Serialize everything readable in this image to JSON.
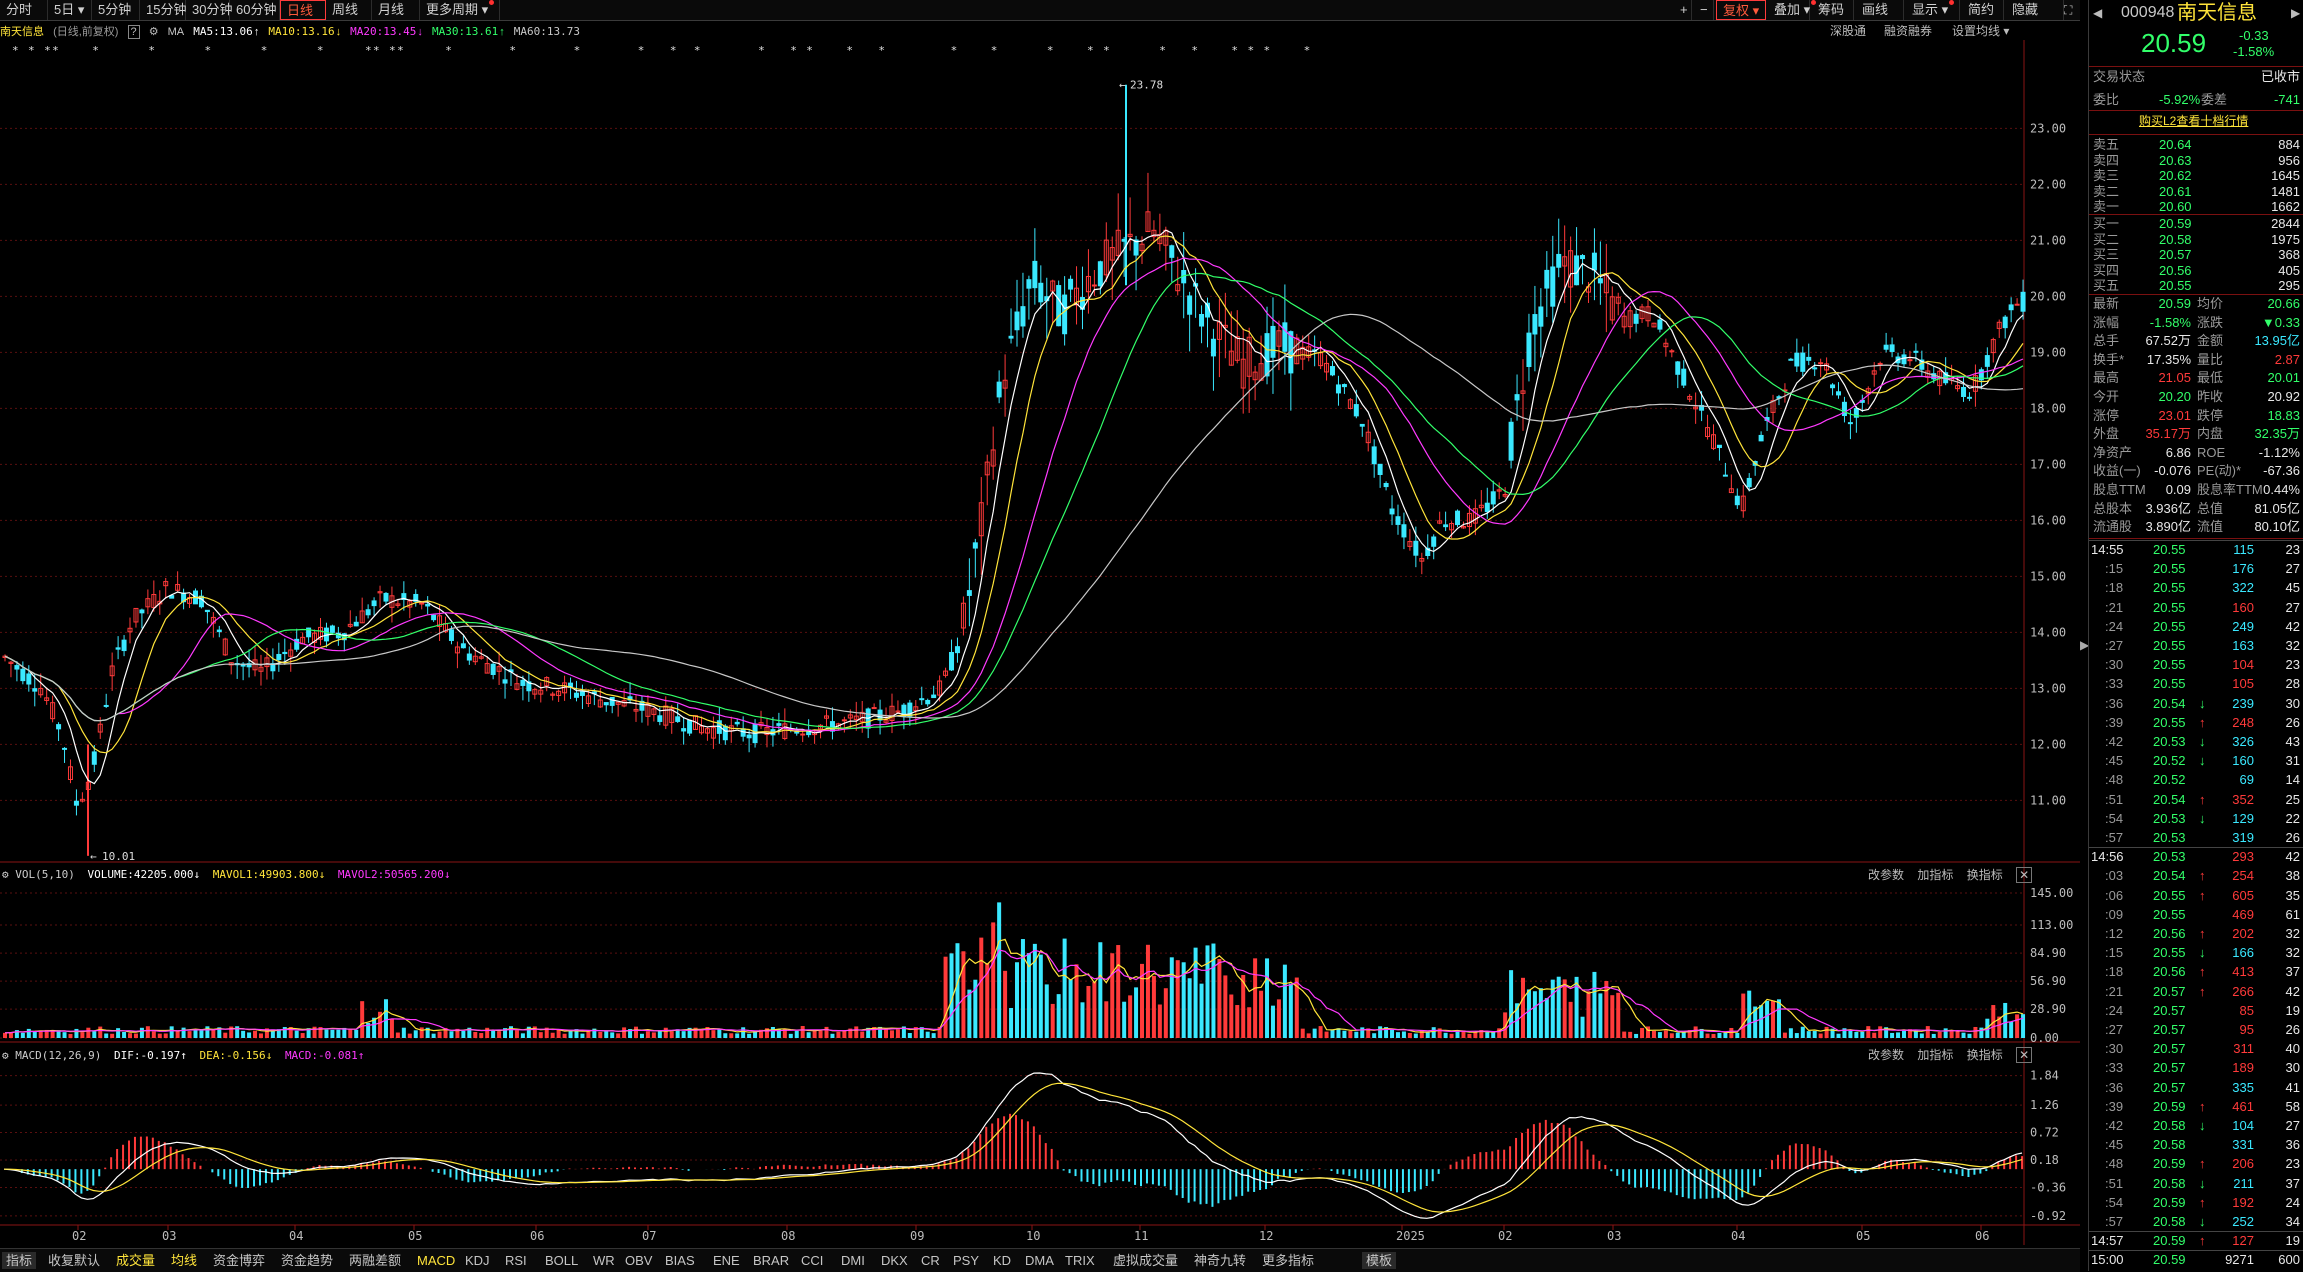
{
  "toolbar": {
    "left_items": [
      "分时",
      "5日 ▾",
      "5分钟",
      "15分钟",
      "30分钟",
      "60分钟",
      "日线",
      "周线",
      "月线",
      "更多周期 ▾"
    ],
    "active": "日线",
    "right_items": [
      "+",
      "−",
      "复权 ▾",
      "叠加 ▾",
      "筹码",
      "画线",
      "显示 ▾",
      "简约",
      "隐藏"
    ],
    "sub_right": [
      "深股通",
      "融资融券",
      "设置均线 ▾"
    ]
  },
  "chart_header": {
    "stock_name": "南天信息",
    "mode": "(日线,前复权)",
    "help": "?",
    "ma_label": "MA",
    "ma5": "MA5:13.06",
    "ma10": "MA10:13.16",
    "ma20": "MA20:13.45",
    "ma30": "MA30:13.61",
    "ma60": "MA60:13.73"
  },
  "colors": {
    "up": "#ff3a3a",
    "down": "#3ae8ff",
    "ma5": "#ffffff",
    "ma10": "#ffe43a",
    "ma20": "#ff3aff",
    "ma30": "#32ff6a",
    "ma60": "#c8c8c8",
    "grid": "#5a0f0f"
  },
  "price_axis": [
    "23.00",
    "22.00",
    "21.00",
    "20.00",
    "19.00",
    "18.00",
    "17.00",
    "16.00",
    "15.00",
    "14.00",
    "13.00",
    "12.00",
    "11.00"
  ],
  "annotations": {
    "high": "23.78",
    "low": "10.01"
  },
  "event_markers": "* * **    *      *      *      *      *     ** **     *       *       *       *   *  *       *   * *    *   *        *    *      *    * *      *   *    * * *    *",
  "vol_panel": {
    "label": "VOL(5,10)",
    "volume": "VOLUME:42205.000",
    "mavol1": "MAVOL1:49903.800",
    "mavol2": "MAVOL2:50565.200",
    "buttons": [
      "改参数",
      "加指标",
      "换指标"
    ],
    "axis": [
      "145.00",
      "113.00",
      "84.90",
      "56.90",
      "28.90",
      "0.00"
    ]
  },
  "macd_panel": {
    "label": "MACD(12,26,9)",
    "dif": "DIF:-0.197",
    "dea": "DEA:-0.156",
    "macd": "MACD:-0.081",
    "buttons": [
      "改参数",
      "加指标",
      "换指标"
    ],
    "axis": [
      "1.84",
      "1.26",
      "0.72",
      "0.18",
      "-0.36",
      "-0.92"
    ]
  },
  "x_axis": [
    "02",
    "03",
    "04",
    "05",
    "06",
    "07",
    "08",
    "09",
    "10",
    "11",
    "12",
    "2025",
    "02",
    "03",
    "04",
    "05",
    "06"
  ],
  "bottom_tabs": [
    "指标",
    "收复默认",
    "成交量",
    "均线",
    "资金博弈",
    "资金趋势",
    "两融差额",
    "MACD",
    "KDJ",
    "RSI",
    "BOLL",
    "WR",
    "OBV",
    "BIAS",
    "ENE",
    "BRAR",
    "CCI",
    "DMI",
    "DKX",
    "CR",
    "PSY",
    "KD",
    "DMA",
    "TRIX",
    "虚拟成交量",
    "神奇九转",
    "更多指标",
    "模板"
  ],
  "quote": {
    "code": "000948",
    "name": "南天信息",
    "price": "20.59",
    "change": "-0.33",
    "pct": "-1.58%",
    "status_label": "交易状态",
    "status": "已收市",
    "weibi_label": "委比",
    "weibi": "-5.92%",
    "weicha_label": "委差",
    "weicha": "-741",
    "l2_link": "购买L2查看十档行情",
    "asks": [
      {
        "label": "卖五",
        "price": "20.64",
        "vol": "884"
      },
      {
        "label": "卖四",
        "price": "20.63",
        "vol": "956"
      },
      {
        "label": "卖三",
        "price": "20.62",
        "vol": "1645"
      },
      {
        "label": "卖二",
        "price": "20.61",
        "vol": "1481"
      },
      {
        "label": "卖一",
        "price": "20.60",
        "vol": "1662"
      }
    ],
    "bids": [
      {
        "label": "买一",
        "price": "20.59",
        "vol": "2844"
      },
      {
        "label": "买二",
        "price": "20.58",
        "vol": "1975"
      },
      {
        "label": "买三",
        "price": "20.57",
        "vol": "368"
      },
      {
        "label": "买四",
        "price": "20.56",
        "vol": "405"
      },
      {
        "label": "买五",
        "price": "20.55",
        "vol": "295"
      }
    ],
    "stats": [
      {
        "l1": "最新",
        "v1": "20.59",
        "c1": "green",
        "l2": "均价",
        "v2": "20.66",
        "c2": "green"
      },
      {
        "l1": "涨幅",
        "v1": "-1.58%",
        "c1": "green",
        "l2": "涨跌",
        "v2": "▼0.33",
        "c2": "green"
      },
      {
        "l1": "总手",
        "v1": "67.52万",
        "c1": "white",
        "l2": "金额",
        "v2": "13.95亿",
        "c2": "cyan"
      },
      {
        "l1": "换手*",
        "v1": "17.35%",
        "c1": "white",
        "l2": "量比",
        "v2": "2.87",
        "c2": "red"
      },
      {
        "l1": "最高",
        "v1": "21.05",
        "c1": "red",
        "l2": "最低",
        "v2": "20.01",
        "c2": "green"
      },
      {
        "l1": "今开",
        "v1": "20.20",
        "c1": "green",
        "l2": "昨收",
        "v2": "20.92",
        "c2": "white"
      },
      {
        "l1": "涨停",
        "v1": "23.01",
        "c1": "red",
        "l2": "跌停",
        "v2": "18.83",
        "c2": "green"
      },
      {
        "l1": "外盘",
        "v1": "35.17万",
        "c1": "red",
        "l2": "内盘",
        "v2": "32.35万",
        "c2": "green"
      },
      {
        "l1": "净资产",
        "v1": "6.86",
        "c1": "white",
        "l2": "ROE",
        "v2": "-1.12%",
        "c2": "white"
      },
      {
        "l1": "收益(一)",
        "v1": "-0.076",
        "c1": "white",
        "l2": "PE(动)*",
        "v2": "-67.36",
        "c2": "white"
      },
      {
        "l1": "股息TTM",
        "v1": "0.09",
        "c1": "white",
        "l2": "股息率TTM",
        "v2": "0.44%",
        "c2": "white"
      },
      {
        "l1": "总股本",
        "v1": "3.936亿",
        "c1": "white",
        "l2": "总值",
        "v2": "81.05亿",
        "c2": "white"
      },
      {
        "l1": "流通股",
        "v1": "3.890亿",
        "c1": "white",
        "l2": "流值",
        "v2": "80.10亿",
        "c2": "white"
      }
    ],
    "ticks": [
      {
        "t": "14:55",
        "p": "20.55",
        "pc": "green",
        "v": "115",
        "a": "",
        "vc": "cyan",
        "n": "23"
      },
      {
        "t": ":15",
        "p": "20.55",
        "pc": "green",
        "v": "176",
        "a": "",
        "vc": "cyan",
        "n": "27"
      },
      {
        "t": ":18",
        "p": "20.55",
        "pc": "green",
        "v": "322",
        "a": "",
        "vc": "cyan",
        "n": "45"
      },
      {
        "t": ":21",
        "p": "20.55",
        "pc": "green",
        "v": "160",
        "a": "",
        "vc": "red",
        "n": "27"
      },
      {
        "t": ":24",
        "p": "20.55",
        "pc": "green",
        "v": "249",
        "a": "",
        "vc": "cyan",
        "n": "42"
      },
      {
        "t": ":27",
        "p": "20.55",
        "pc": "green",
        "v": "163",
        "a": "",
        "vc": "cyan",
        "n": "32"
      },
      {
        "t": ":30",
        "p": "20.55",
        "pc": "green",
        "v": "104",
        "a": "",
        "vc": "red",
        "n": "23"
      },
      {
        "t": ":33",
        "p": "20.55",
        "pc": "green",
        "v": "105",
        "a": "",
        "vc": "red",
        "n": "28"
      },
      {
        "t": ":36",
        "p": "20.54",
        "pc": "green",
        "v": "239",
        "a": "↓",
        "vc": "cyan",
        "n": "30"
      },
      {
        "t": ":39",
        "p": "20.55",
        "pc": "green",
        "v": "248",
        "a": "↑",
        "vc": "red",
        "n": "26"
      },
      {
        "t": ":42",
        "p": "20.53",
        "pc": "green",
        "v": "326",
        "a": "↓",
        "vc": "cyan",
        "n": "43"
      },
      {
        "t": ":45",
        "p": "20.52",
        "pc": "green",
        "v": "160",
        "a": "↓",
        "vc": "cyan",
        "n": "31"
      },
      {
        "t": ":48",
        "p": "20.52",
        "pc": "green",
        "v": "69",
        "a": "",
        "vc": "cyan",
        "n": "14"
      },
      {
        "t": ":51",
        "p": "20.54",
        "pc": "green",
        "v": "352",
        "a": "↑",
        "vc": "red",
        "n": "25"
      },
      {
        "t": ":54",
        "p": "20.53",
        "pc": "green",
        "v": "129",
        "a": "↓",
        "vc": "cyan",
        "n": "22"
      },
      {
        "t": ":57",
        "p": "20.53",
        "pc": "green",
        "v": "319",
        "a": "",
        "vc": "cyan",
        "n": "26"
      },
      {
        "t": "14:56",
        "p": "20.53",
        "pc": "green",
        "v": "293",
        "a": "",
        "vc": "red",
        "n": "42"
      },
      {
        "t": ":03",
        "p": "20.54",
        "pc": "green",
        "v": "254",
        "a": "↑",
        "vc": "red",
        "n": "38"
      },
      {
        "t": ":06",
        "p": "20.55",
        "pc": "green",
        "v": "605",
        "a": "↑",
        "vc": "red",
        "n": "35"
      },
      {
        "t": ":09",
        "p": "20.55",
        "pc": "green",
        "v": "469",
        "a": "",
        "vc": "red",
        "n": "61"
      },
      {
        "t": ":12",
        "p": "20.56",
        "pc": "green",
        "v": "202",
        "a": "↑",
        "vc": "red",
        "n": "32"
      },
      {
        "t": ":15",
        "p": "20.55",
        "pc": "green",
        "v": "166",
        "a": "↓",
        "vc": "cyan",
        "n": "32"
      },
      {
        "t": ":18",
        "p": "20.56",
        "pc": "green",
        "v": "413",
        "a": "↑",
        "vc": "red",
        "n": "37"
      },
      {
        "t": ":21",
        "p": "20.57",
        "pc": "green",
        "v": "266",
        "a": "↑",
        "vc": "red",
        "n": "42"
      },
      {
        "t": ":24",
        "p": "20.57",
        "pc": "green",
        "v": "85",
        "a": "",
        "vc": "red",
        "n": "19"
      },
      {
        "t": ":27",
        "p": "20.57",
        "pc": "green",
        "v": "95",
        "a": "",
        "vc": "red",
        "n": "26"
      },
      {
        "t": ":30",
        "p": "20.57",
        "pc": "green",
        "v": "311",
        "a": "",
        "vc": "red",
        "n": "40"
      },
      {
        "t": ":33",
        "p": "20.57",
        "pc": "green",
        "v": "189",
        "a": "",
        "vc": "red",
        "n": "30"
      },
      {
        "t": ":36",
        "p": "20.57",
        "pc": "green",
        "v": "335",
        "a": "",
        "vc": "cyan",
        "n": "41"
      },
      {
        "t": ":39",
        "p": "20.59",
        "pc": "green",
        "v": "461",
        "a": "↑",
        "vc": "red",
        "n": "58"
      },
      {
        "t": ":42",
        "p": "20.58",
        "pc": "green",
        "v": "104",
        "a": "↓",
        "vc": "cyan",
        "n": "27"
      },
      {
        "t": ":45",
        "p": "20.58",
        "pc": "green",
        "v": "331",
        "a": "",
        "vc": "cyan",
        "n": "36"
      },
      {
        "t": ":48",
        "p": "20.59",
        "pc": "green",
        "v": "206",
        "a": "↑",
        "vc": "red",
        "n": "23"
      },
      {
        "t": ":51",
        "p": "20.58",
        "pc": "green",
        "v": "211",
        "a": "↓",
        "vc": "cyan",
        "n": "37"
      },
      {
        "t": ":54",
        "p": "20.59",
        "pc": "green",
        "v": "192",
        "a": "↑",
        "vc": "red",
        "n": "24"
      },
      {
        "t": ":57",
        "p": "20.58",
        "pc": "green",
        "v": "252",
        "a": "↓",
        "vc": "cyan",
        "n": "34"
      },
      {
        "t": "14:57",
        "p": "20.59",
        "pc": "green",
        "v": "127",
        "a": "↑",
        "vc": "red",
        "n": "19"
      },
      {
        "t": "15:00",
        "p": "20.59",
        "pc": "green",
        "v": "9271",
        "a": "",
        "vc": "white",
        "n": "600"
      }
    ]
  }
}
